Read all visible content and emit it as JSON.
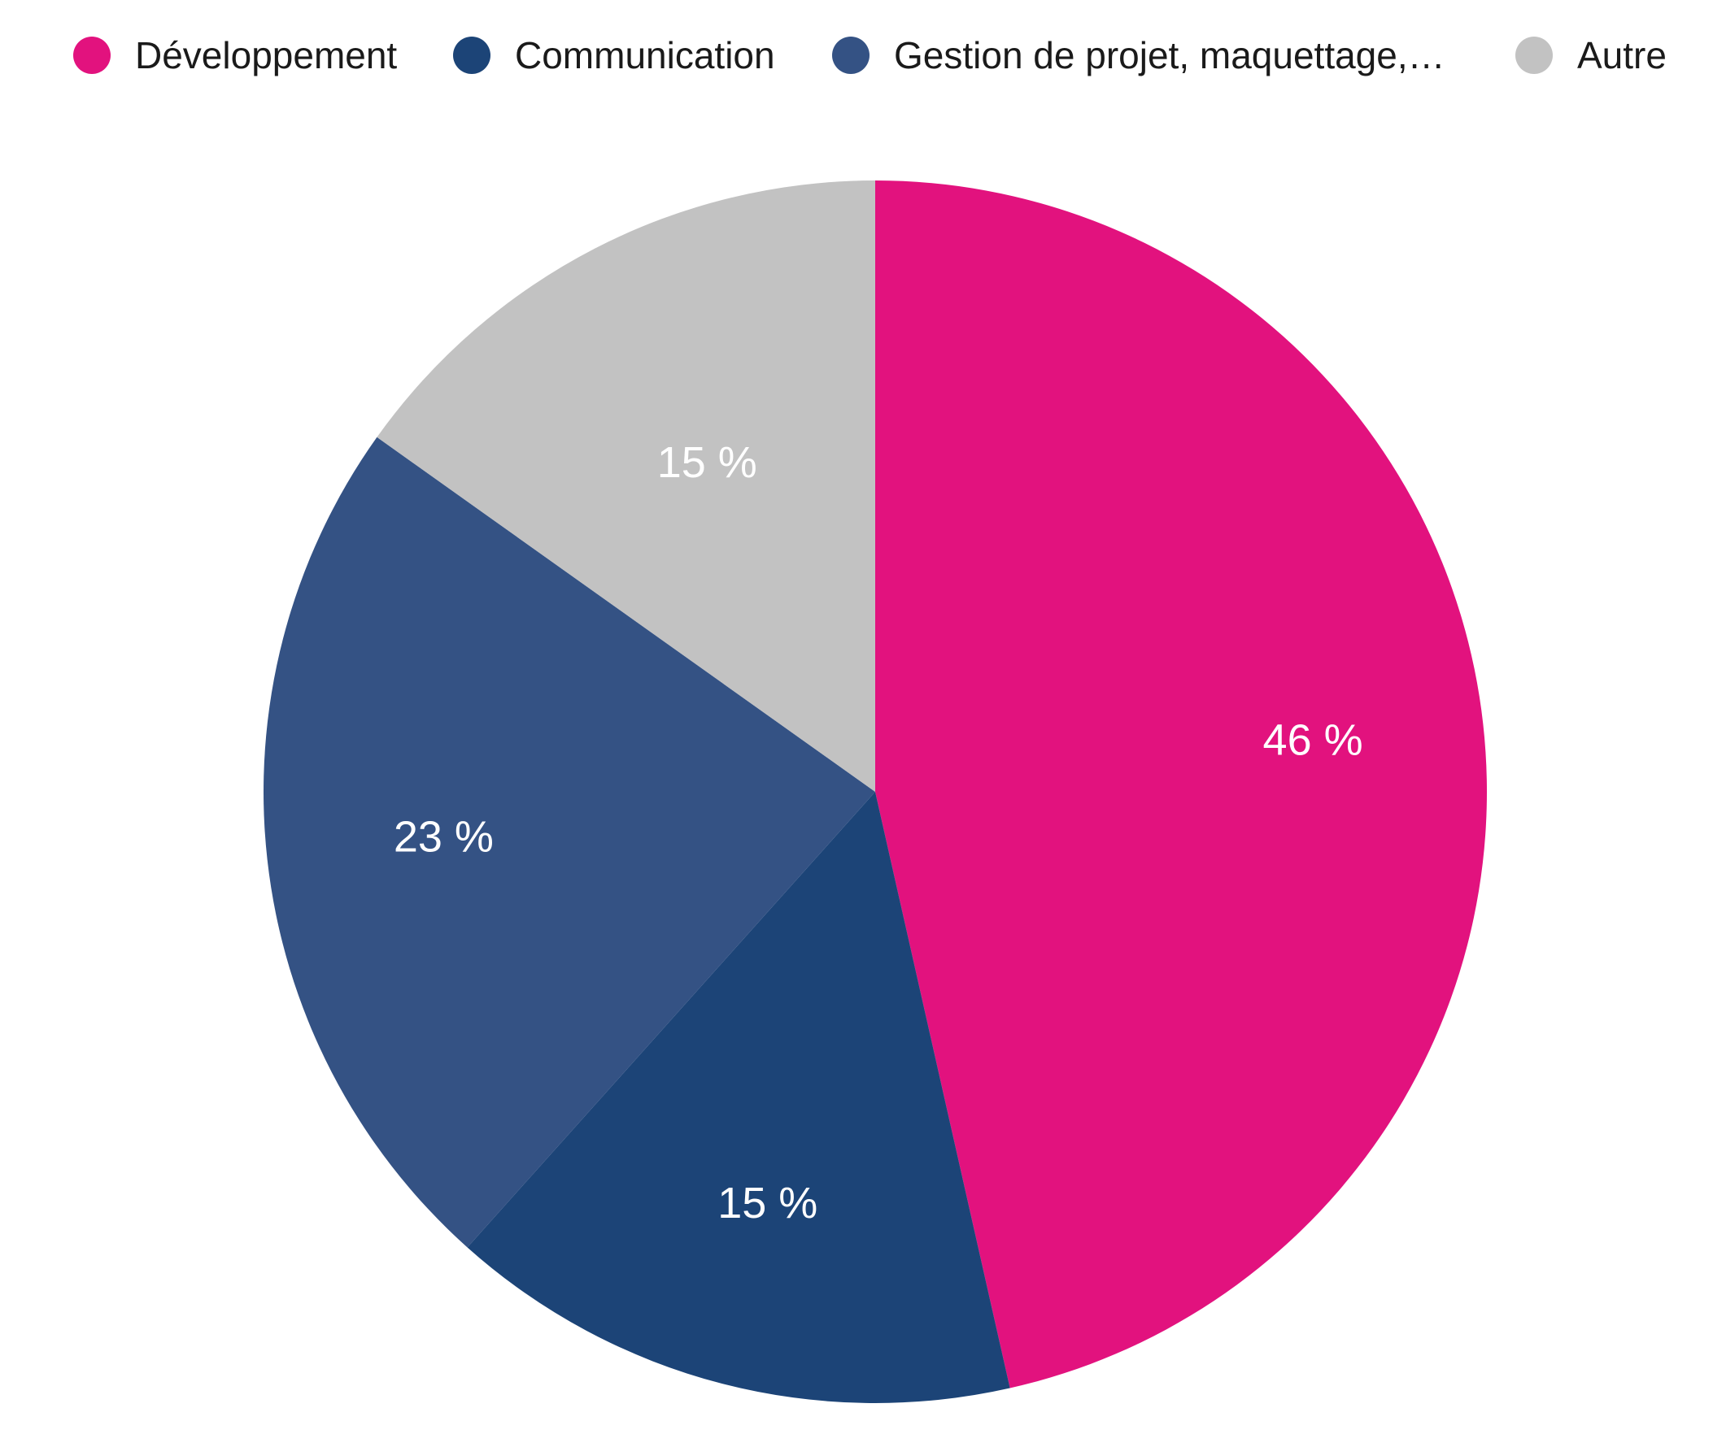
{
  "chart_data": {
    "type": "pie",
    "categories": [
      "Développement",
      "Communication",
      "Gestion de projet, maquettage,…",
      "Autre"
    ],
    "values": [
      46,
      15,
      23,
      15
    ],
    "data_labels": [
      "46 %",
      "15 %",
      "23 %",
      "15 %"
    ],
    "colors": [
      "#e2127e",
      "#1c4477",
      "#345284",
      "#c2c2c2"
    ],
    "legend": {
      "position": "top",
      "entries": [
        "Développement",
        "Communication",
        "Gestion de projet, maquettage,…",
        "Autre"
      ]
    },
    "start_angle": "12 o'clock",
    "direction": "clockwise"
  }
}
